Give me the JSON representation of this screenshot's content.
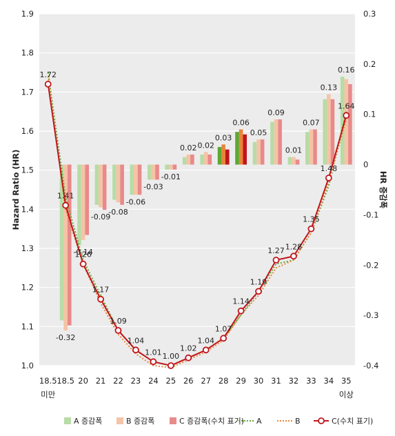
{
  "chart_data": {
    "type": "bar+line",
    "title": "",
    "y_left_label": "Hazard Ratio (HR)",
    "y_right_label": "HR 증감폭",
    "y_left_range": [
      1.0,
      1.9
    ],
    "y_left_ticks": [
      "1.0",
      "1.1",
      "1.2",
      "1.3",
      "1.4",
      "1.5",
      "1.6",
      "1.7",
      "1.8",
      "1.9"
    ],
    "y_right_range": [
      -0.4,
      0.3
    ],
    "y_right_ticks": [
      "-0.4",
      "-0.3",
      "-0.2",
      "-0.1",
      "0",
      "0.1",
      "0.2",
      "0.3"
    ],
    "grid": "horizontal",
    "legend_position": "bottom",
    "categories": [
      {
        "line1": "18.5",
        "line2": "미만"
      },
      {
        "line1": "18.5",
        "line2": ""
      },
      {
        "line1": "20",
        "line2": ""
      },
      {
        "line1": "21",
        "line2": ""
      },
      {
        "line1": "22",
        "line2": ""
      },
      {
        "line1": "23",
        "line2": ""
      },
      {
        "line1": "24",
        "line2": ""
      },
      {
        "line1": "25",
        "line2": ""
      },
      {
        "line1": "26",
        "line2": ""
      },
      {
        "line1": "27",
        "line2": ""
      },
      {
        "line1": "28",
        "line2": ""
      },
      {
        "line1": "29",
        "line2": ""
      },
      {
        "line1": "30",
        "line2": ""
      },
      {
        "line1": "31",
        "line2": ""
      },
      {
        "line1": "32",
        "line2": ""
      },
      {
        "line1": "33",
        "line2": ""
      },
      {
        "line1": "34",
        "line2": ""
      },
      {
        "line1": "35",
        "line2": "이상"
      }
    ],
    "bar_series": [
      {
        "name": "A 증감폭",
        "color": "#b7dca5",
        "values": [
          null,
          -0.31,
          -0.16,
          -0.08,
          -0.07,
          -0.06,
          -0.03,
          -0.01,
          0.015,
          0.02,
          0.035,
          0.065,
          0.045,
          0.085,
          0.015,
          0.065,
          0.13,
          0.175
        ]
      },
      {
        "name": "B 증감폭",
        "color": "#f5c4a7",
        "values": [
          null,
          -0.33,
          -0.15,
          -0.085,
          -0.075,
          -0.06,
          -0.03,
          -0.01,
          0.02,
          0.025,
          0.04,
          0.07,
          0.05,
          0.09,
          0.015,
          0.07,
          0.14,
          0.17
        ]
      },
      {
        "name": "C 증감폭(수치 표기)",
        "color": "#e88a8a",
        "highlight_color": "#c1151c",
        "highlight_index": 11,
        "labels": [
          null,
          "-0.32",
          "-0.14",
          "-0.09",
          "-0.08",
          "-0.06",
          "-0.03",
          "-0.01",
          "0.02",
          "0.02",
          "0.03",
          "0.06",
          "0.05",
          "0.09",
          "0.01",
          "0.07",
          "0.13",
          "0.16"
        ],
        "values": [
          null,
          -0.32,
          -0.14,
          -0.09,
          -0.08,
          -0.06,
          -0.03,
          -0.01,
          0.02,
          0.02,
          0.03,
          0.06,
          0.05,
          0.09,
          0.01,
          0.07,
          0.13,
          0.16
        ]
      }
    ],
    "line_series": [
      {
        "name": "A",
        "color": "#5ca832",
        "style": "dotted",
        "values": [
          1.75,
          1.43,
          1.27,
          1.18,
          1.09,
          1.04,
          1.01,
          1.0,
          1.02,
          1.04,
          1.07,
          1.13,
          1.19,
          1.26,
          1.27,
          1.34,
          1.46,
          1.65
        ]
      },
      {
        "name": "B",
        "color": "#e8853a",
        "style": "dotted",
        "values": [
          1.74,
          1.4,
          1.26,
          1.16,
          1.08,
          1.03,
          1.0,
          0.995,
          1.015,
          1.035,
          1.065,
          1.13,
          1.18,
          1.25,
          1.27,
          1.34,
          1.47,
          1.63
        ]
      },
      {
        "name": "C(수치 표기)",
        "color": "#c1151c",
        "style": "solid-marker",
        "labels": [
          "1.72",
          "1.41",
          "1.26",
          "1.17",
          "1.09",
          "1.04",
          "1.01",
          "1.00",
          "1.02",
          "1.04",
          "1.07",
          "1.14",
          "1.19",
          "1.27",
          "1.28",
          "1.35",
          "1.48",
          "1.64"
        ],
        "values": [
          1.72,
          1.41,
          1.26,
          1.17,
          1.09,
          1.04,
          1.01,
          1.0,
          1.02,
          1.04,
          1.07,
          1.14,
          1.19,
          1.27,
          1.28,
          1.35,
          1.48,
          1.64
        ]
      }
    ],
    "legend": [
      "A 증감폭",
      "B 증감폭",
      "C 증감폭(수치 표기)",
      "A",
      "B",
      "C(수치 표기)"
    ]
  }
}
